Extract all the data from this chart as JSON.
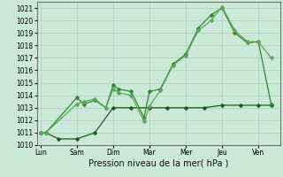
{
  "title": "",
  "xlabel": "Pression niveau de la mer( hPa )",
  "bg_color": "#cce8d8",
  "grid_color": "#aacfbe",
  "line_color_dark": "#1a5c1a",
  "line_color_mid": "#2e8b2e",
  "line_color_light": "#5aaa5a",
  "ylim": [
    1010,
    1021.5
  ],
  "yticks": [
    1010,
    1011,
    1012,
    1013,
    1014,
    1015,
    1016,
    1017,
    1018,
    1019,
    1020,
    1021
  ],
  "xtick_labels": [
    "Lun",
    "Sam",
    "Dim",
    "Mar",
    "Mer",
    "Jeu",
    "Ven"
  ],
  "xtick_positions": [
    0,
    1,
    2,
    3,
    4,
    5,
    6
  ],
  "xlim": [
    -0.1,
    6.6
  ],
  "line1_x": [
    0.0,
    0.15,
    1.0,
    1.2,
    1.5,
    1.8,
    2.0,
    2.15,
    2.5,
    2.85,
    3.0,
    3.3,
    3.65,
    4.0,
    4.35,
    4.7,
    5.0,
    5.35,
    5.7,
    6.0,
    6.35
  ],
  "line1_y": [
    1011.0,
    1011.0,
    1013.8,
    1013.3,
    1013.6,
    1013.0,
    1014.8,
    1014.5,
    1014.3,
    1012.2,
    1014.3,
    1014.5,
    1016.5,
    1017.3,
    1019.4,
    1020.45,
    1021.0,
    1019.0,
    1018.2,
    1018.3,
    1013.3
  ],
  "line2_x": [
    0.0,
    0.15,
    1.0,
    1.2,
    1.5,
    1.8,
    2.0,
    2.15,
    2.5,
    2.85,
    3.0,
    3.3,
    3.65,
    4.0,
    4.35,
    4.7,
    5.0,
    5.35,
    5.7,
    6.0,
    6.35
  ],
  "line2_y": [
    1011.0,
    1011.0,
    1013.3,
    1013.5,
    1013.7,
    1013.0,
    1014.5,
    1014.2,
    1014.0,
    1011.9,
    1013.1,
    1014.4,
    1016.4,
    1017.2,
    1019.2,
    1020.0,
    1021.1,
    1019.2,
    1018.3,
    1018.3,
    1017.0
  ],
  "line3_x": [
    0.0,
    0.15,
    0.5,
    1.0,
    1.5,
    2.0,
    2.5,
    3.0,
    3.5,
    4.0,
    4.5,
    5.0,
    5.5,
    6.0,
    6.35
  ],
  "line3_y": [
    1011.0,
    1011.0,
    1010.5,
    1010.5,
    1011.0,
    1013.0,
    1013.0,
    1013.0,
    1013.0,
    1013.0,
    1013.0,
    1013.2,
    1013.2,
    1013.2,
    1013.2
  ],
  "marker_size": 2.5,
  "linewidth": 0.9,
  "tick_fontsize": 5.5,
  "xlabel_fontsize": 7.0
}
